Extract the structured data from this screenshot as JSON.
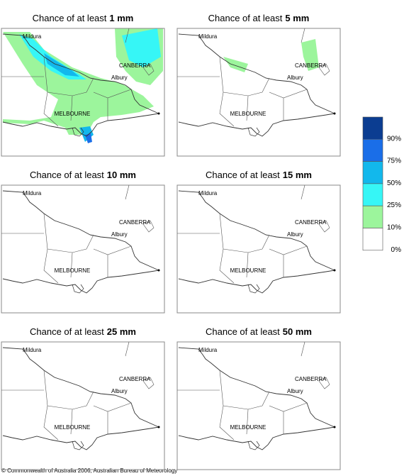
{
  "panels": [
    {
      "title_prefix": "Chance of at least",
      "title_amount": "1 mm",
      "places": [
        "Mildura",
        "CANBERRA",
        "Albury",
        "MELBOURNE"
      ]
    },
    {
      "title_prefix": "Chance of at least",
      "title_amount": "5 mm",
      "places": [
        "Mildura",
        "CANBERRA",
        "Albury",
        "MELBOURNE"
      ]
    },
    {
      "title_prefix": "Chance of at least",
      "title_amount": "10 mm",
      "places": [
        "Mildura",
        "CANBERRA",
        "Albury",
        "MELBOURNE"
      ]
    },
    {
      "title_prefix": "Chance of at least",
      "title_amount": "15 mm",
      "places": [
        "Mildura",
        "CANBERRA",
        "Albury",
        "MELBOURNE"
      ]
    },
    {
      "title_prefix": "Chance of at least",
      "title_amount": "25 mm",
      "places": [
        "Mildura",
        "CANBERRA",
        "Albury",
        "MELBOURNE"
      ]
    },
    {
      "title_prefix": "Chance of at least",
      "title_amount": "50 mm",
      "places": [
        "Mildura",
        "CANBERRA",
        "Albury",
        "MELBOURNE"
      ]
    }
  ],
  "legend": {
    "colors": [
      "#0b3d91",
      "#1a6ee8",
      "#12b8ec",
      "#36f6f6",
      "#9cf59c",
      "#ffffff"
    ],
    "labels": [
      "90%",
      "75%",
      "50%",
      "25%",
      "10%",
      "0%"
    ]
  },
  "footer": "© Commonwealth of Australia 2006, Australian Bureau of Meteorology"
}
